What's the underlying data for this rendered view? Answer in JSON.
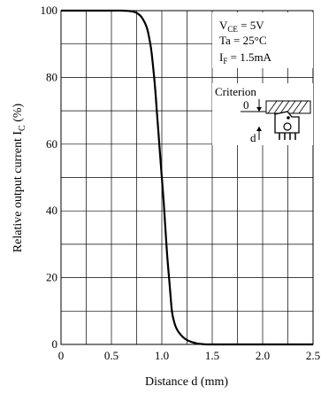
{
  "chart_data": {
    "type": "line",
    "xlabel": "Distance  d  (mm)",
    "ylabel_text": "Relative output current  ",
    "ylabel_symbol": "I",
    "ylabel_subscript": "C",
    "ylabel_unit": "  (%)",
    "xlim": [
      0,
      2.5
    ],
    "ylim": [
      0,
      100
    ],
    "x_ticks": [
      0,
      0.5,
      1.0,
      1.5,
      2.0,
      2.5
    ],
    "x_tick_labels": [
      "0",
      "0.5",
      "1.0",
      "1.5",
      "2.0",
      "2.5"
    ],
    "y_ticks": [
      0,
      20,
      40,
      60,
      80,
      100
    ],
    "y_tick_labels": [
      "0",
      "20",
      "40",
      "60",
      "80",
      "100"
    ],
    "x_grid_step": 0.25,
    "y_grid_step": 10,
    "grid": true,
    "series": [
      {
        "x": [
          0,
          0.5,
          0.6,
          0.7,
          0.75,
          0.8,
          0.85,
          0.88,
          0.9,
          0.93,
          0.95,
          0.98,
          1.0,
          1.02,
          1.05,
          1.08,
          1.1,
          1.12,
          1.15,
          1.2,
          1.25,
          1.3,
          1.35,
          1.4,
          1.45,
          1.5,
          2.0,
          2.5
        ],
        "y": [
          100,
          100,
          100,
          99.8,
          99.3,
          98,
          95,
          91,
          87,
          78,
          70,
          58,
          50,
          42,
          28,
          17,
          10,
          7,
          4.5,
          2.5,
          1.3,
          0.7,
          0.3,
          0.1,
          0,
          0,
          0,
          0
        ]
      }
    ],
    "conditions": {
      "vce_sym": "V",
      "vce_sub": "CE",
      "vce_val": " = 5V",
      "ta": "Ta = 25°C",
      "if_sym": "I",
      "if_sub": "F",
      "if_val": " = 1.5mA"
    },
    "inset": {
      "title": "Criterion",
      "zero_label": "0",
      "d_label": "d"
    }
  }
}
